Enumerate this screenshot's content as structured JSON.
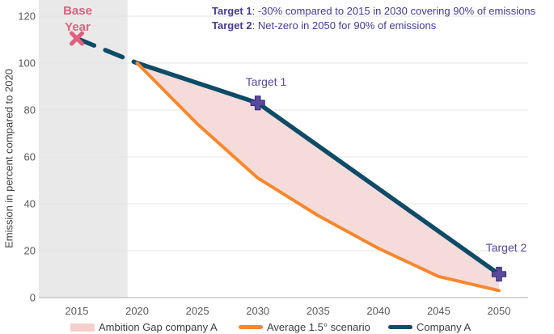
{
  "colors": {
    "navy": "#0e4b67",
    "orange": "#f8872d",
    "gap_fill": "#f5dcdb",
    "legend_gap_swatch": "#f3cfce",
    "pink_marker": "#e0607e",
    "purple_marker": "#5a4a9b",
    "purple_marker_border": "#3c3380",
    "purple_text": "#443b92",
    "band_gray": "#e9e9e9",
    "gridline": "#e4e4e4",
    "axis_line": "#c8c8c8",
    "tick_text": "#595959"
  },
  "annotation": {
    "line1_bold": "Target 1",
    "line1_rest": ": -30% compared to 2015 in 2030 covering 90% of emissions",
    "line2_bold": "Target 2",
    "line2_rest": ": Net-zero in 2050 for 90% of emissions"
  },
  "base_year": {
    "line1": "Base",
    "line2": "Year"
  },
  "legend": {
    "items": [
      {
        "label": "Ambition Gap company A",
        "swatch": "area",
        "color": "#f3cfce"
      },
      {
        "label": "Average 1.5° scenario",
        "swatch": "line",
        "color": "#f8872d"
      },
      {
        "label": "Company A",
        "swatch": "line",
        "color": "#0e4b67"
      }
    ]
  },
  "chart_data": {
    "type": "line",
    "title": "",
    "xlabel": "",
    "ylabel": "Emission in percent compared to 2020",
    "xticks": [
      2015,
      2020,
      2025,
      2030,
      2035,
      2040,
      2045,
      2050
    ],
    "yticks": [
      0,
      20,
      40,
      60,
      80,
      100,
      120
    ],
    "xlim": [
      2011.8,
      2052.4
    ],
    "ylim": [
      0,
      128
    ],
    "grid": "horizontal",
    "legend_position": "bottom",
    "base_year_band": {
      "x_start": 2011.8,
      "x_end": 2019.2
    },
    "series": [
      {
        "name": "Company A history (dashed)",
        "style": "dashed",
        "color": "#0e4b67",
        "x": [
          2015,
          2020
        ],
        "y": [
          110.5,
          100
        ]
      },
      {
        "name": "Company A",
        "style": "solid",
        "color": "#0e4b67",
        "x": [
          2020,
          2030,
          2050
        ],
        "y": [
          100,
          83,
          10
        ]
      },
      {
        "name": "Average 1.5° scenario",
        "style": "solid",
        "color": "#f8872d",
        "x": [
          2020,
          2025,
          2030,
          2035,
          2040,
          2045,
          2050
        ],
        "y": [
          100,
          74,
          51,
          35,
          21,
          9,
          3
        ]
      }
    ],
    "area": {
      "name": "Ambition Gap company A",
      "between": [
        "Company A",
        "Average 1.5° scenario"
      ],
      "fill": "#f5dcdb"
    },
    "markers": [
      {
        "type": "x",
        "x": 2015,
        "y": 110.5,
        "label": "Base Year",
        "color": "#e0607e"
      },
      {
        "type": "plus",
        "x": 2030,
        "y": 83,
        "label": "Target 1",
        "color": "#5a4a9b"
      },
      {
        "type": "plus",
        "x": 2050,
        "y": 10,
        "label": "Target 2",
        "color": "#5a4a9b"
      }
    ]
  }
}
